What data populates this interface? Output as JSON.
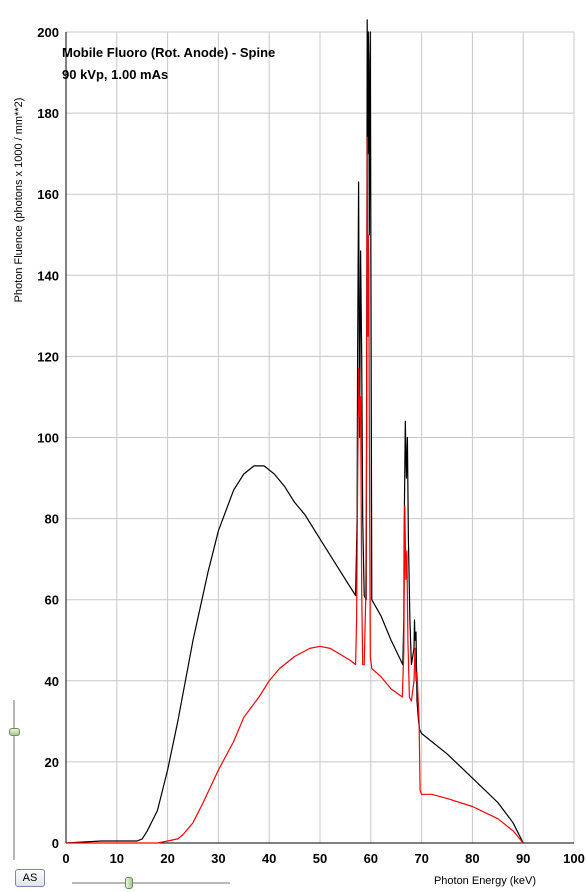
{
  "chart_data": {
    "type": "line",
    "title": "Mobile Fluoro (Rot. Anode) - Spine",
    "subtitle": "90 kVp, 1.00 mAs",
    "xlabel": "Photon Energy (keV)",
    "ylabel": "Photon Fluence (photons x 1000 / mm**2)",
    "xlim": [
      0,
      100
    ],
    "ylim": [
      0,
      200
    ],
    "x_ticks": [
      "0",
      "10",
      "20",
      "30",
      "40",
      "50",
      "60",
      "70",
      "80",
      "90",
      "100"
    ],
    "y_ticks": [
      "0",
      "20",
      "40",
      "60",
      "80",
      "100",
      "120",
      "140",
      "160",
      "180",
      "200"
    ],
    "grid": true,
    "series": [
      {
        "color": "#000000",
        "x": [
          0,
          7,
          14,
          15,
          16,
          18,
          20,
          22,
          25,
          28,
          30,
          33,
          35,
          37,
          39,
          41,
          43,
          45,
          47,
          50,
          53,
          55,
          57,
          57.3,
          57.4,
          57.6,
          57.8,
          58.0,
          58.2,
          58.4,
          58.7,
          59.1,
          59.2,
          59.3,
          59.4,
          59.5,
          59.6,
          59.7,
          59.9,
          60.2,
          62,
          64,
          66.3,
          66.5,
          66.6,
          66.8,
          67.0,
          67.2,
          67.4,
          67.7,
          68.0,
          68.5,
          68.6,
          68.7,
          68.9,
          69.1,
          69.4,
          69.6,
          70,
          75,
          80,
          85,
          88,
          90
        ],
        "y": [
          0,
          0.5,
          0.5,
          1,
          3,
          8,
          18,
          30,
          50,
          67,
          77,
          87,
          91,
          93,
          93,
          91,
          88,
          84,
          81,
          75,
          69,
          65,
          61,
          80,
          120,
          163,
          100,
          146,
          120,
          80,
          61,
          60,
          120,
          205,
          170,
          200,
          193,
          150,
          200,
          60,
          56,
          50,
          44,
          55,
          80,
          104,
          90,
          100,
          75,
          55,
          44,
          48,
          55,
          50,
          52,
          35,
          30,
          28,
          27,
          22,
          16,
          10,
          5,
          0
        ]
      },
      {
        "color": "#ff0000",
        "x": [
          0,
          7,
          15,
          18,
          20,
          22,
          23,
          25,
          27,
          30,
          33,
          35,
          38,
          40,
          42,
          45,
          48,
          50,
          52,
          54,
          56,
          57,
          57.2,
          57.4,
          57.6,
          57.8,
          58.0,
          58.2,
          58.4,
          58.7,
          59.0,
          59.2,
          59.3,
          59.4,
          59.5,
          59.6,
          59.7,
          59.9,
          60.2,
          62,
          64,
          66.2,
          66.5,
          66.7,
          66.9,
          67.1,
          67.3,
          67.6,
          68.0,
          68.5,
          68.7,
          68.9,
          69.1,
          69.5,
          69.7,
          70,
          72,
          75,
          80,
          85,
          88,
          90
        ],
        "y": [
          0,
          0,
          0,
          0,
          0.5,
          1,
          2,
          5,
          10,
          18,
          25,
          31,
          36,
          40,
          43,
          46,
          48,
          48.5,
          48,
          46.5,
          45,
          44,
          55,
          88,
          117,
          105,
          110,
          62,
          44,
          44,
          60,
          100,
          174,
          125,
          150,
          141,
          103,
          46,
          43,
          41,
          38,
          36,
          47,
          83,
          65,
          72,
          50,
          36,
          35,
          40,
          48,
          40,
          42,
          30,
          13,
          12,
          12,
          11,
          9,
          6,
          3,
          0
        ]
      }
    ]
  },
  "ui": {
    "as_button_label": "AS"
  }
}
